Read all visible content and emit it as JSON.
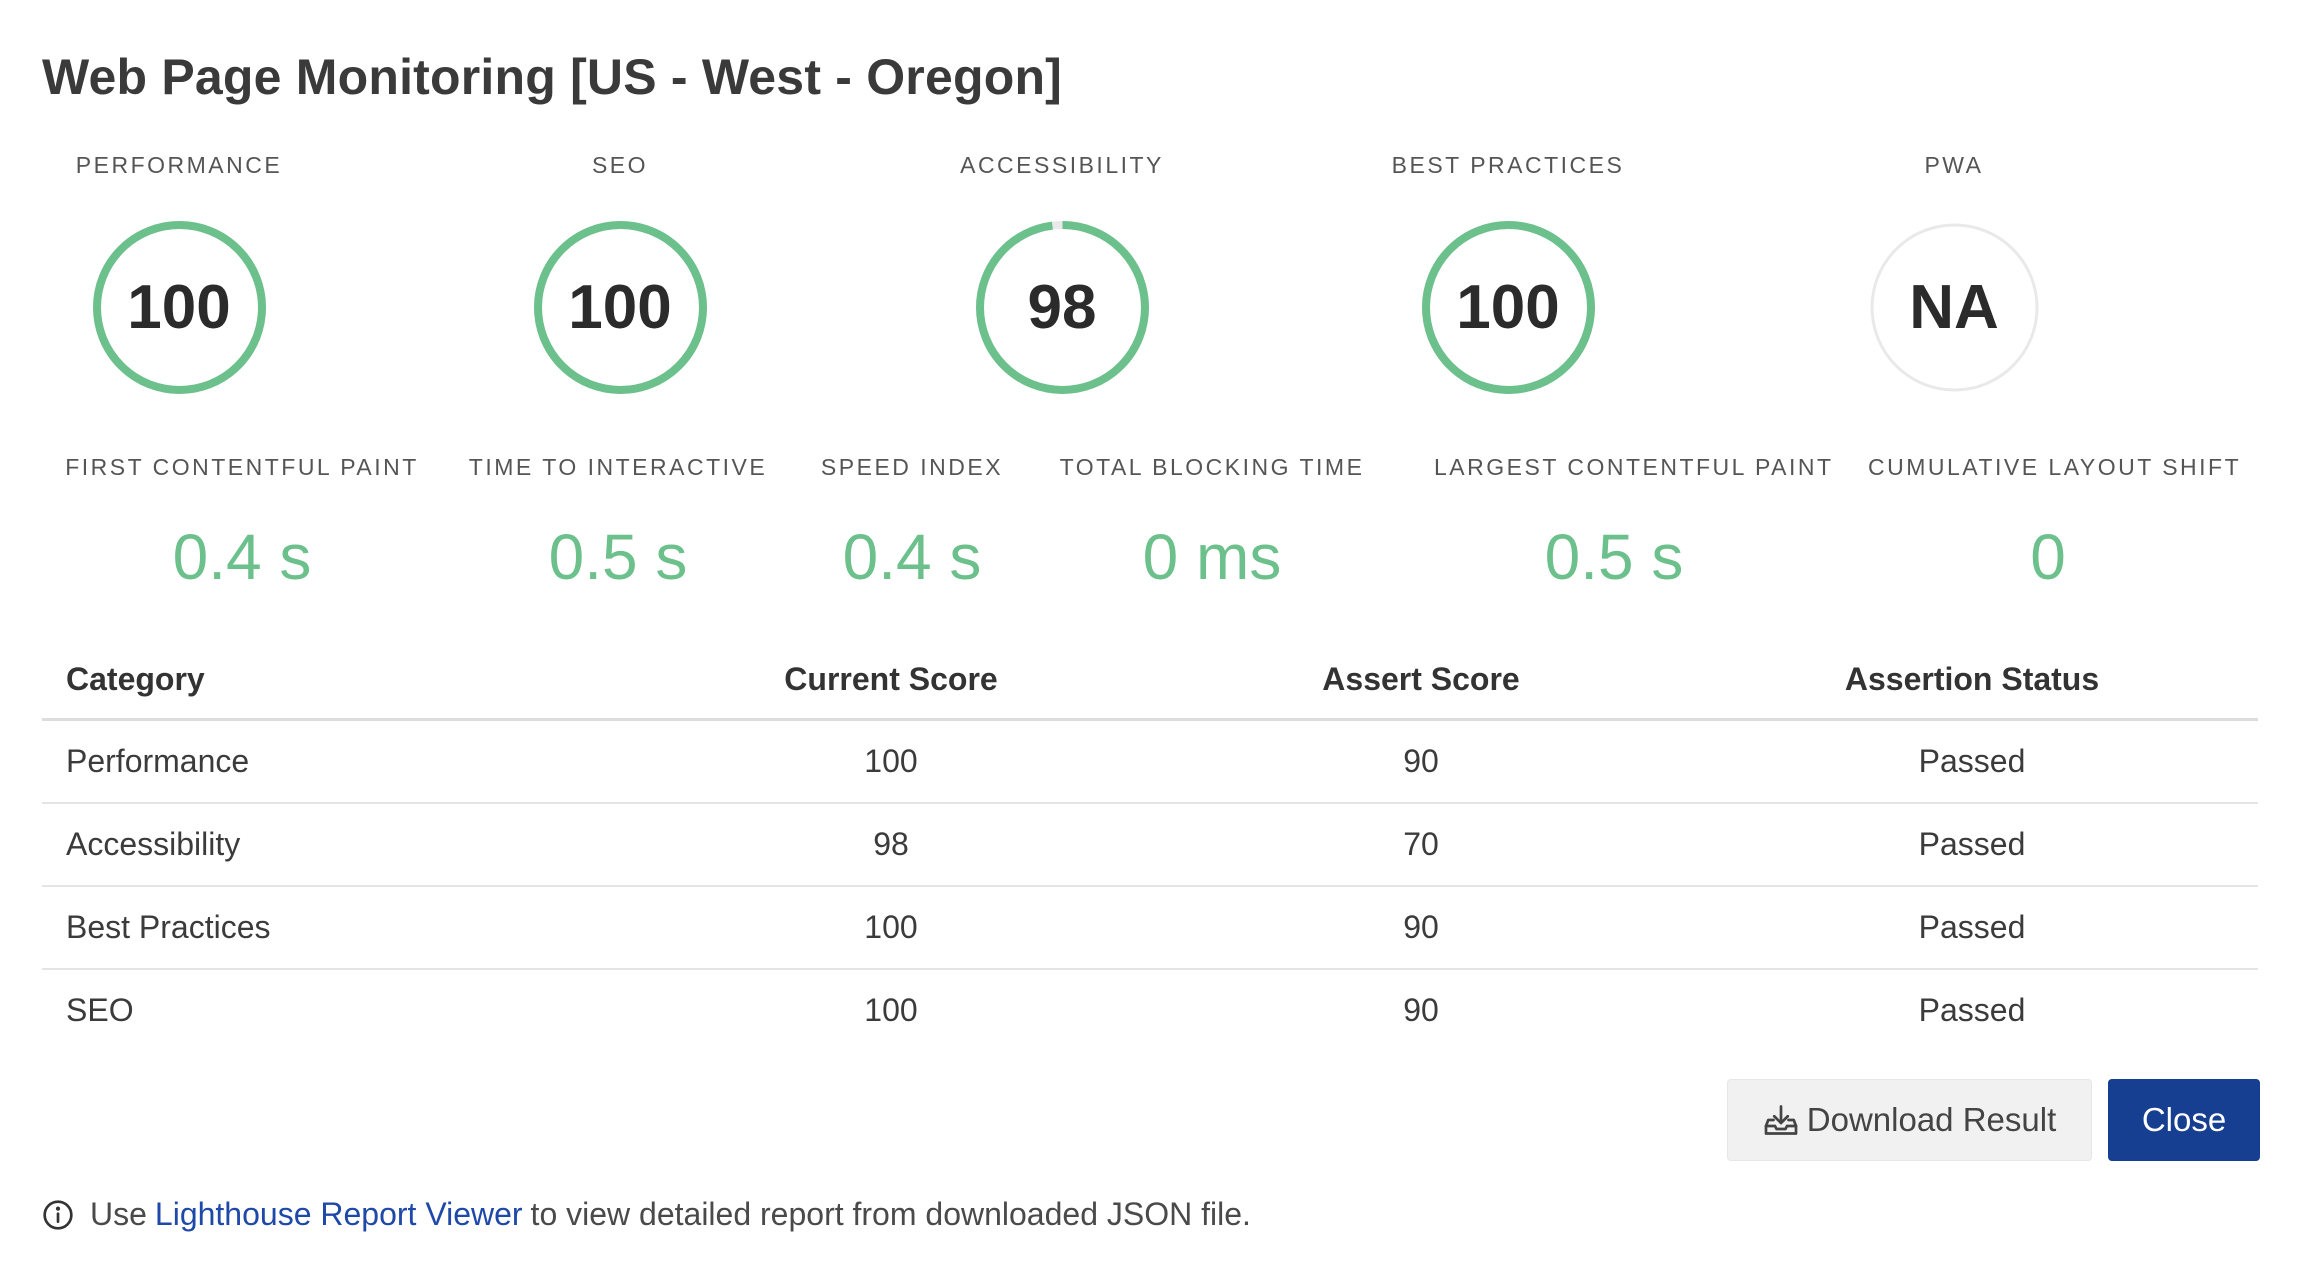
{
  "title": "Web Page Monitoring [US - West - Oregon]",
  "colors": {
    "ring_pass": "#6cc08b",
    "ring_empty": "#e9e9e9",
    "metric_value": "#6cc08b",
    "primary_button": "#163f91",
    "link": "#1f49a8"
  },
  "gauges": [
    {
      "label": "PERFORMANCE",
      "value": "100",
      "score": 100
    },
    {
      "label": "SEO",
      "value": "100",
      "score": 100
    },
    {
      "label": "ACCESSIBILITY",
      "value": "98",
      "score": 98
    },
    {
      "label": "BEST PRACTICES",
      "value": "100",
      "score": 100
    },
    {
      "label": "PWA",
      "value": "NA",
      "score": null
    }
  ],
  "metrics": [
    {
      "label": "FIRST CONTENTFUL PAINT",
      "value": "0.4 s"
    },
    {
      "label": "TIME TO INTERACTIVE",
      "value": "0.5 s"
    },
    {
      "label": "SPEED INDEX",
      "value": "0.4 s"
    },
    {
      "label": "TOTAL BLOCKING TIME",
      "value": "0 ms"
    },
    {
      "label": "LARGEST CONTENTFUL PAINT",
      "value": "0.5 s"
    },
    {
      "label": "CUMULATIVE LAYOUT SHIFT",
      "value": "0"
    }
  ],
  "table": {
    "headers": [
      "Category",
      "Current Score",
      "Assert Score",
      "Assertion Status"
    ],
    "rows": [
      [
        "Performance",
        "100",
        "90",
        "Passed"
      ],
      [
        "Accessibility",
        "98",
        "70",
        "Passed"
      ],
      [
        "Best Practices",
        "100",
        "90",
        "Passed"
      ],
      [
        "SEO",
        "100",
        "90",
        "Passed"
      ]
    ]
  },
  "buttons": {
    "download_label": "Download Result",
    "download_icon": "download-tray-icon",
    "close_label": "Close"
  },
  "footnote": {
    "icon": "info-icon",
    "prefix": "Use",
    "link_text": "Lighthouse Report Viewer",
    "suffix": "to view detailed report from downloaded JSON file."
  }
}
